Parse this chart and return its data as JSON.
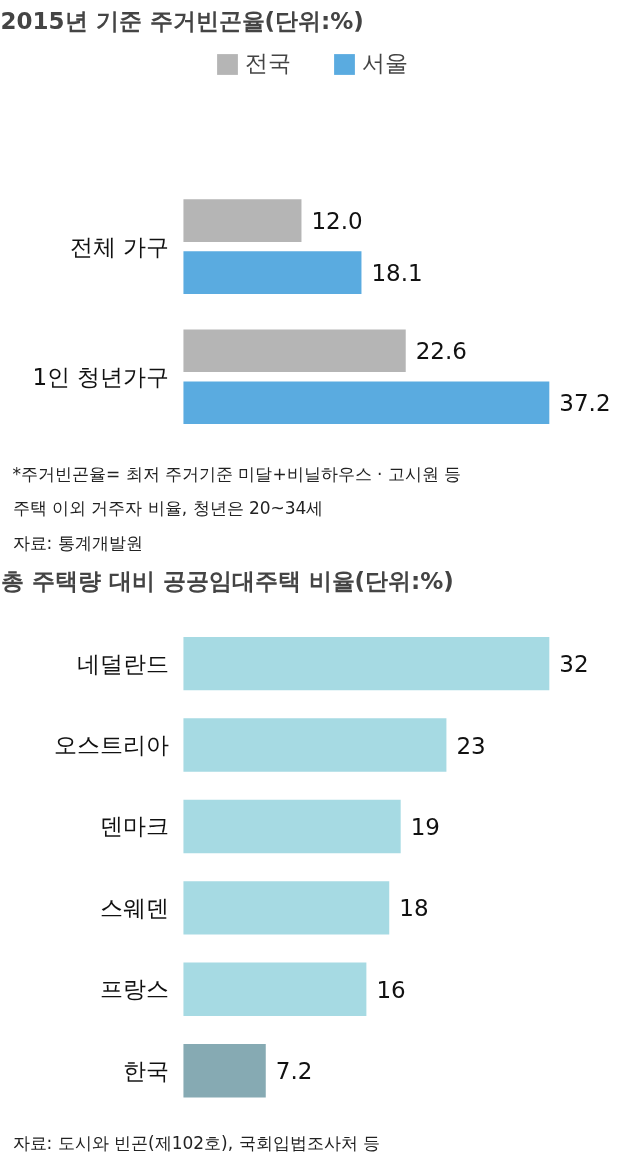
{
  "chart_data": [
    {
      "type": "bar",
      "orientation": "horizontal",
      "title": "2015년 기준 주거빈곤율(단위:%)",
      "categories": [
        "전체 가구",
        "1인 청년가구"
      ],
      "series": [
        {
          "name": "전국",
          "color": "#b5b5b5",
          "values": [
            12.0,
            22.6
          ],
          "value_labels": [
            "12.0",
            "22.6"
          ]
        },
        {
          "name": "서울",
          "color": "#5aabe0",
          "values": [
            18.1,
            37.2
          ],
          "value_labels": [
            "18.1",
            "37.2"
          ]
        }
      ],
      "tick_labels": "y",
      "grid": false,
      "legend": "top",
      "annotations": [
        "*주거빈곤율= 최저 주거기준 미달+비닐하우스 · 고시원 등",
        "주택 이외 거주자 비율, 청년은 20~34세",
        "자료: 통계개발원"
      ]
    },
    {
      "type": "bar",
      "orientation": "horizontal",
      "title": "총 주택량 대비 공공임대주택 비율(단위:%)",
      "categories": [
        "네덜란드",
        "오스트리아",
        "덴마크",
        "스웨덴",
        "프랑스",
        "한국"
      ],
      "values": [
        32,
        23,
        19,
        18,
        16,
        7.2
      ],
      "colors": [
        "#a6dae3",
        "#a6dae3",
        "#a6dae3",
        "#a6dae3",
        "#a6dae3",
        "#86aab3"
      ],
      "tick_labels": "y",
      "grid": false,
      "data_labels": true,
      "annotations": [
        "자료: 도시와 빈곤(제102호), 국회입법조사처 등"
      ]
    }
  ]
}
